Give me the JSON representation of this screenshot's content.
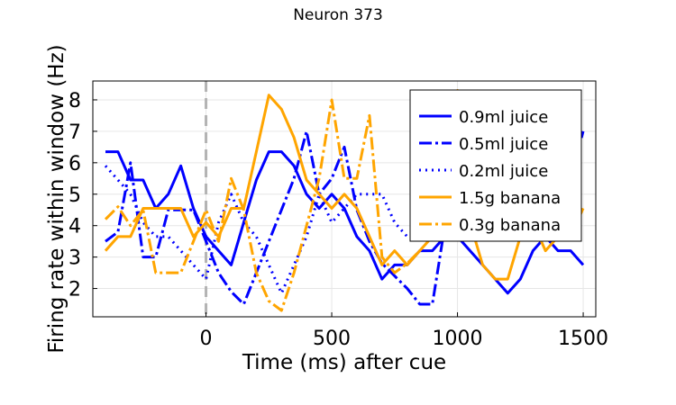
{
  "chart_data": {
    "type": "line",
    "title": "Neuron 373",
    "xlabel": "Time (ms) after cue",
    "ylabel": "Firing rate within window (Hz)",
    "xlim": [
      -450,
      1550
    ],
    "ylim": [
      1.1,
      8.6
    ],
    "xticks": [
      0,
      500,
      1000,
      1500
    ],
    "xtick_labels": [
      "0",
      "500",
      "1000",
      "1500"
    ],
    "yticks": [
      2,
      3,
      4,
      5,
      6,
      7,
      8
    ],
    "ytick_labels": [
      "2",
      "3",
      "4",
      "5",
      "6",
      "7",
      "8"
    ],
    "grid": true,
    "legend_position": "top-right",
    "cue_line_x": 0,
    "series": [
      {
        "name": "0.9ml juice",
        "color": "#0000ff",
        "dash": "solid",
        "x": [
          -400,
          -350,
          -300,
          -250,
          -200,
          -150,
          -100,
          -50,
          0,
          50,
          100,
          150,
          200,
          250,
          300,
          350,
          400,
          450,
          500,
          550,
          600,
          650,
          700,
          750,
          800,
          850,
          900,
          950,
          1000,
          1050,
          1100,
          1150,
          1200,
          1250,
          1300,
          1350,
          1400,
          1450,
          1500
        ],
        "y": [
          6.35,
          6.35,
          5.45,
          5.45,
          4.55,
          5.0,
          5.9,
          4.55,
          3.65,
          3.2,
          2.75,
          4.1,
          5.45,
          6.35,
          6.35,
          5.9,
          5.0,
          4.55,
          5.0,
          4.55,
          3.65,
          3.2,
          2.3,
          2.75,
          2.75,
          3.2,
          3.2,
          3.65,
          3.65,
          3.2,
          2.75,
          2.3,
          1.85,
          2.3,
          3.2,
          3.65,
          3.2,
          3.2,
          2.75
        ]
      },
      {
        "name": "0.5ml juice",
        "color": "#0000ff",
        "dash": "dashdot",
        "x": [
          -400,
          -350,
          -300,
          -250,
          -200,
          -150,
          -100,
          -50,
          0,
          50,
          100,
          150,
          200,
          250,
          300,
          350,
          400,
          450,
          500,
          550,
          600,
          650,
          700,
          750,
          800,
          850,
          900,
          950,
          1000,
          1050,
          1100,
          1150,
          1200,
          1250,
          1300,
          1350,
          1400,
          1450,
          1500
        ],
        "y": [
          3.5,
          3.8,
          6.0,
          3.0,
          3.0,
          4.5,
          4.5,
          4.5,
          3.5,
          2.5,
          1.9,
          1.5,
          2.5,
          3.5,
          4.5,
          5.5,
          7.0,
          5.0,
          5.5,
          6.5,
          4.5,
          3.5,
          2.8,
          2.4,
          2.0,
          1.5,
          1.5,
          4.0,
          6.0,
          5.5,
          6.5,
          5.0,
          4.5,
          4.0,
          5.0,
          6.5,
          5.5,
          5.5,
          7.0
        ]
      },
      {
        "name": "0.2ml juice",
        "color": "#0000ff",
        "dash": "dot",
        "x": [
          -400,
          -350,
          -300,
          -250,
          -200,
          -150,
          -100,
          -50,
          0,
          50,
          100,
          150,
          200,
          250,
          300,
          350,
          400,
          450,
          500,
          550,
          600,
          650,
          700,
          750,
          800
        ],
        "y": [
          5.9,
          5.45,
          5.0,
          4.1,
          3.65,
          3.65,
          3.2,
          2.75,
          2.3,
          4.1,
          5.0,
          4.1,
          3.65,
          2.75,
          1.85,
          2.75,
          3.65,
          5.0,
          4.1,
          4.55,
          5.0,
          5.0,
          5.0,
          4.1,
          3.65
        ]
      },
      {
        "name": "1.5g banana",
        "color": "#ffa500",
        "dash": "solid",
        "x": [
          -400,
          -350,
          -300,
          -250,
          -200,
          -150,
          -100,
          -50,
          0,
          50,
          100,
          150,
          200,
          250,
          300,
          350,
          400,
          450,
          500,
          550,
          600,
          650,
          700,
          750,
          800,
          850,
          900,
          950,
          1000,
          1050,
          1100,
          1150,
          1200,
          1250,
          1300,
          1350,
          1400,
          1450,
          1500
        ],
        "y": [
          3.2,
          3.65,
          3.65,
          4.55,
          4.55,
          4.55,
          4.55,
          3.65,
          4.1,
          3.65,
          4.55,
          4.55,
          6.35,
          8.15,
          7.7,
          6.8,
          5.45,
          5.0,
          4.55,
          5.0,
          4.55,
          3.65,
          2.75,
          3.2,
          2.75,
          3.2,
          3.65,
          5.0,
          8.3,
          4.1,
          2.75,
          2.3,
          2.3,
          3.65,
          4.1,
          3.2,
          3.65,
          3.65,
          4.55
        ]
      },
      {
        "name": "0.3g banana",
        "color": "#ffa500",
        "dash": "dashdot",
        "x": [
          -400,
          -350,
          -300,
          -250,
          -200,
          -150,
          -100,
          -50,
          0,
          50,
          100,
          150,
          200,
          250,
          300,
          350,
          400,
          450,
          500,
          550,
          600,
          650,
          700,
          750,
          800,
          850
        ],
        "y": [
          4.2,
          4.6,
          4.0,
          4.5,
          2.5,
          2.5,
          2.5,
          3.5,
          4.5,
          3.5,
          5.5,
          4.5,
          2.5,
          1.6,
          1.3,
          2.5,
          4.0,
          5.5,
          8.0,
          5.5,
          5.5,
          7.5,
          3.0,
          2.5,
          2.8,
          3.2
        ]
      }
    ]
  }
}
